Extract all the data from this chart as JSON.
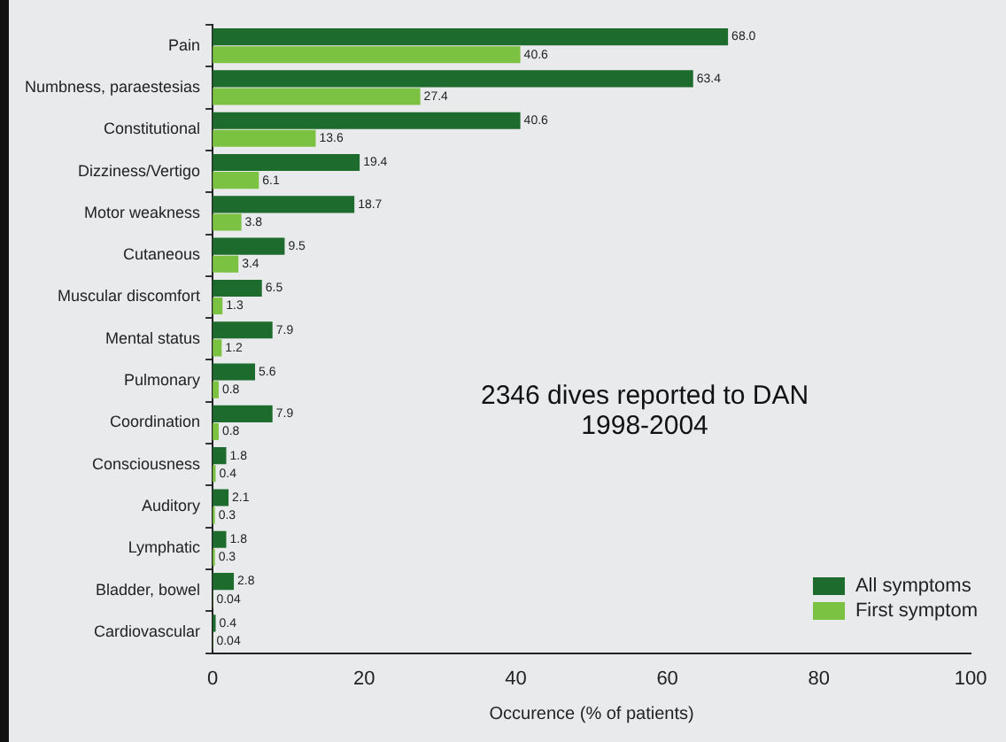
{
  "chart_data": {
    "type": "bar",
    "orientation": "horizontal",
    "categories": [
      "Pain",
      "Numbness, paraestesias",
      "Constitutional",
      "Dizziness/Vertigo",
      "Motor weakness",
      "Cutaneous",
      "Muscular discomfort",
      "Mental status",
      "Pulmonary",
      "Coordination",
      "Consciousness",
      "Auditory",
      "Lymphatic",
      "Bladder, bowel",
      "Cardiovascular"
    ],
    "series": [
      {
        "name": "All symptoms",
        "color": "#1e6b2e",
        "values": [
          68.0,
          63.4,
          40.6,
          19.4,
          18.7,
          9.5,
          6.5,
          7.9,
          5.6,
          7.9,
          1.8,
          2.1,
          1.8,
          2.8,
          0.4
        ],
        "value_labels": [
          "68.0",
          "63.4",
          "40.6",
          "19.4",
          "18.7",
          "9.5",
          "6.5",
          "7.9",
          "5.6",
          "7.9",
          "1.8",
          "2.1",
          "1.8",
          "2.8",
          "0.4"
        ]
      },
      {
        "name": "First symptom",
        "color": "#7cc242",
        "values": [
          40.6,
          27.4,
          13.6,
          6.1,
          3.8,
          3.4,
          1.3,
          1.2,
          0.8,
          0.8,
          0.4,
          0.3,
          0.3,
          0.04,
          0.04
        ],
        "value_labels": [
          "40.6",
          "27.4",
          "13.6",
          "6.1",
          "3.8",
          "3.4",
          "1.3",
          "1.2",
          "0.8",
          "0.8",
          "0.4",
          "0.3",
          "0.3",
          "0.04",
          "0.04"
        ]
      }
    ],
    "xlim": [
      0,
      100
    ],
    "xticks": [
      0,
      20,
      40,
      60,
      80,
      100
    ],
    "xlabel": "Occurence (% of patients)",
    "annotations": [
      "2346 dives reported to DAN\n1998-2004"
    ],
    "legend": "bottom right",
    "grid": false
  }
}
